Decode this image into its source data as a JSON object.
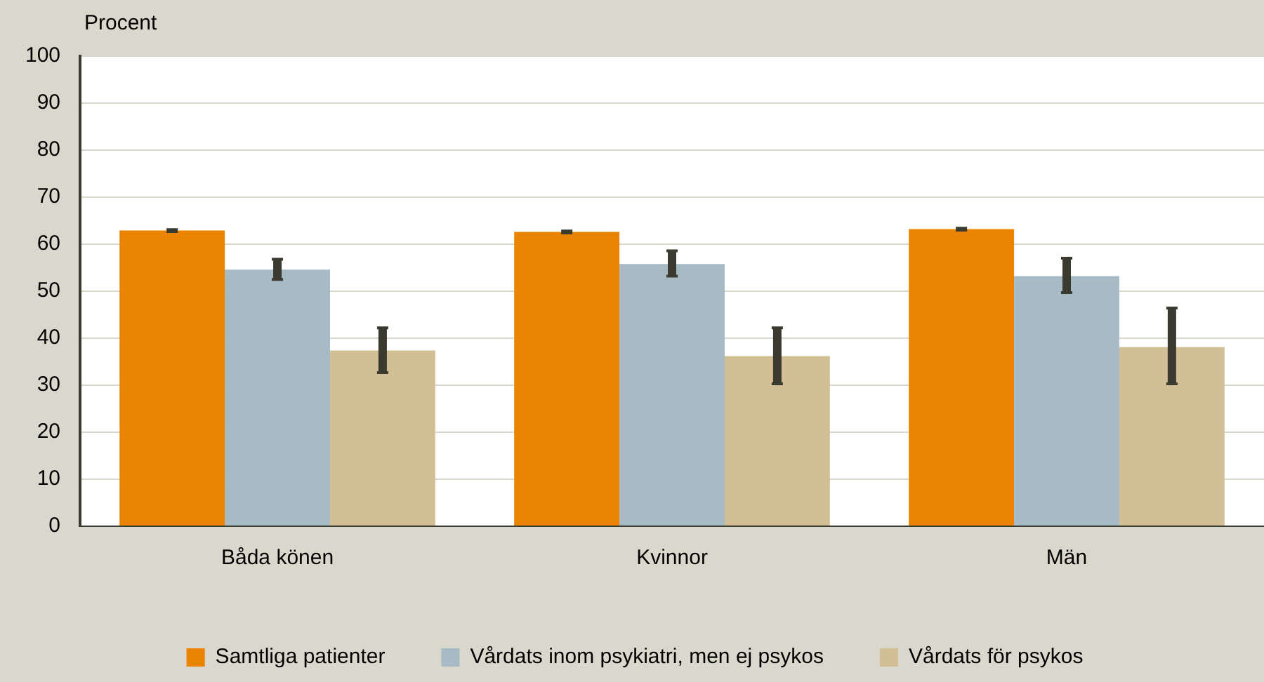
{
  "chart_data": {
    "type": "bar",
    "ylabel": "Procent",
    "categories": [
      "Båda könen",
      "Kvinnor",
      "Män"
    ],
    "series": [
      {
        "name": "Samtliga patienter",
        "color": "#e98300",
        "values": [
          62.9,
          62.6,
          63.2
        ],
        "errors": [
          [
            62.7,
            63.1
          ],
          [
            62.4,
            62.8
          ],
          [
            63.0,
            63.4
          ]
        ]
      },
      {
        "name": "Vårdats inom psykiatri, men ej psykos",
        "color": "#a6bbc5",
        "values": [
          54.6,
          55.8,
          53.2
        ],
        "errors": [
          [
            52.5,
            56.8
          ],
          [
            53.2,
            58.6
          ],
          [
            49.7,
            57.0
          ]
        ]
      },
      {
        "name": "Vårdats för psykos",
        "color": "#d3bf95",
        "values": [
          37.4,
          36.2,
          38.1
        ],
        "errors": [
          [
            32.7,
            42.2
          ],
          [
            30.3,
            42.2
          ],
          [
            30.3,
            46.4
          ]
        ]
      }
    ],
    "ylim": [
      0,
      100
    ],
    "yticks": [
      0,
      10,
      20,
      30,
      40,
      50,
      60,
      70,
      80,
      90,
      100
    ],
    "grid": "y",
    "legend": "bottom"
  }
}
